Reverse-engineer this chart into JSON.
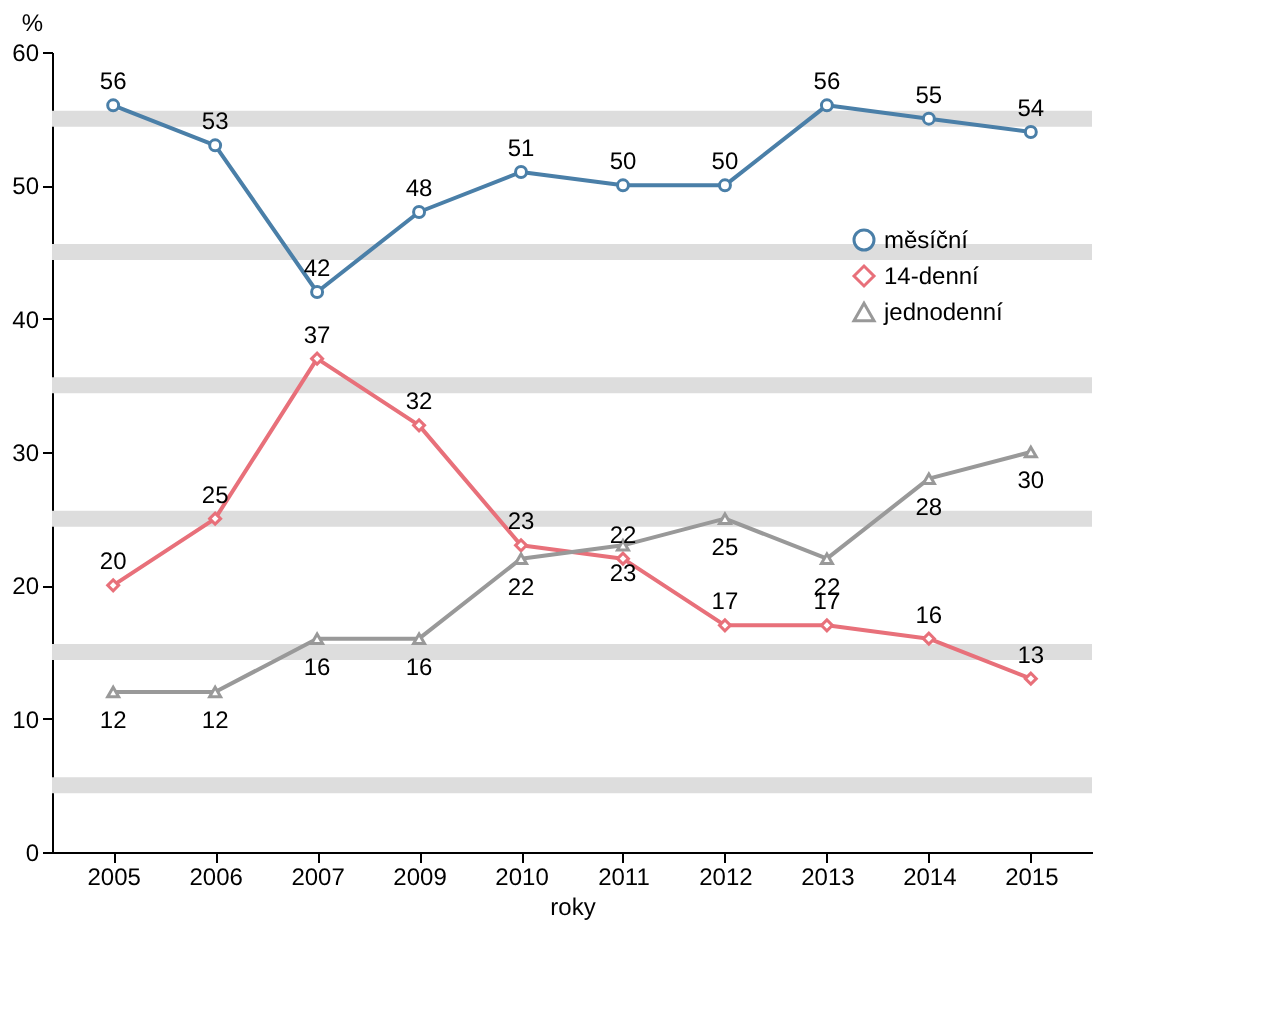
{
  "chart_data": {
    "type": "line",
    "xlabel": "roky",
    "ylabel": "%",
    "categories": [
      "2005",
      "2006",
      "2007",
      "2009",
      "2010",
      "2011",
      "2012",
      "2013",
      "2014",
      "2015"
    ],
    "series": [
      {
        "name": "měsíční",
        "color": "#4a7fa8",
        "marker": "circle",
        "values": [
          56,
          53,
          42,
          48,
          51,
          50,
          50,
          56,
          55,
          54
        ]
      },
      {
        "name": "14-denní",
        "color": "#e8707a",
        "marker": "diamond",
        "values": [
          20,
          25,
          37,
          32,
          23,
          22,
          17,
          17,
          16,
          13
        ]
      },
      {
        "name": "jednodenní",
        "color": "#999999",
        "marker": "triangle",
        "values": [
          12,
          12,
          16,
          16,
          22,
          23,
          25,
          22,
          28,
          30
        ]
      }
    ],
    "ylim": [
      0,
      60
    ],
    "yticks": [
      0,
      10,
      20,
      30,
      40,
      50,
      60
    ],
    "ref_lines": [
      {
        "axis": "y",
        "value": 5,
        "color": "#dddddd"
      },
      {
        "axis": "y",
        "value": 15,
        "color": "#dddddd"
      },
      {
        "axis": "y",
        "value": 25,
        "color": "#dddddd"
      },
      {
        "axis": "y",
        "value": 35,
        "color": "#dddddd"
      },
      {
        "axis": "y",
        "value": 45,
        "color": "#dddddd"
      },
      {
        "axis": "y",
        "value": 55,
        "color": "#dddddd"
      }
    ],
    "grid": false,
    "legend": "right",
    "data_labels": true,
    "line_style": "solid"
  }
}
